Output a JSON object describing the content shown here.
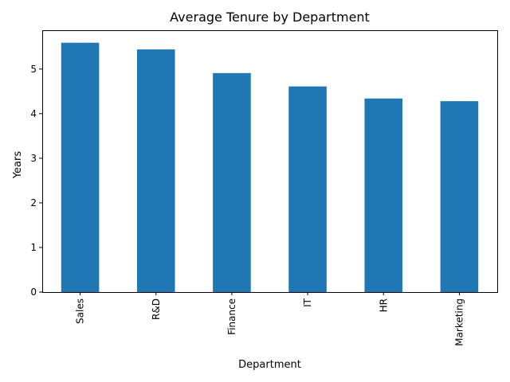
{
  "chart_data": {
    "type": "bar",
    "title": "Average Tenure by Department",
    "xlabel": "Department",
    "ylabel": "Years",
    "categories": [
      "Sales",
      "R&D",
      "Finance",
      "IT",
      "HR",
      "Marketing"
    ],
    "values": [
      5.59,
      5.44,
      4.91,
      4.61,
      4.34,
      4.28
    ],
    "ylim": [
      0,
      5.87
    ],
    "yticks": [
      0,
      1,
      2,
      3,
      4,
      5
    ],
    "x_tick_rotation": "vertical",
    "grid": false,
    "legend": "none",
    "bar_color": "#1f77b4"
  }
}
